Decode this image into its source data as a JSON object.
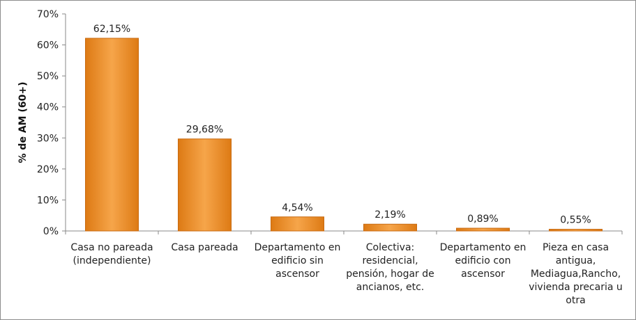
{
  "chart_data": {
    "type": "bar",
    "title": "",
    "xlabel": "",
    "ylabel": "% de AM (60+)",
    "ylim": [
      0,
      70
    ],
    "yticks": [
      "0%",
      "10%",
      "20%",
      "30%",
      "40%",
      "50%",
      "60%",
      "70%"
    ],
    "grid": false,
    "categories": [
      [
        "Casa no pareada",
        "(independiente)"
      ],
      [
        "Casa pareada"
      ],
      [
        "Departamento en",
        "edificio sin",
        "ascensor"
      ],
      [
        "Colectiva:",
        "residencial,",
        "pensión, hogar de",
        "ancianos, etc."
      ],
      [
        "Departamento en",
        "edificio con",
        "ascensor"
      ],
      [
        "Pieza en casa",
        "antigua,",
        "Mediagua,Rancho,",
        "vivienda precaria u",
        "otra"
      ]
    ],
    "values": [
      62.15,
      29.68,
      4.54,
      2.19,
      0.89,
      0.55
    ],
    "data_labels": [
      "62,15%",
      "29,68%",
      "4,54%",
      "2,19%",
      "0,89%",
      "0,55%"
    ],
    "colors": {
      "bar_light": "#f6a54a",
      "bar_dark": "#dd7a14",
      "bar_edge": "#c86a10",
      "axis": "#888888"
    }
  }
}
